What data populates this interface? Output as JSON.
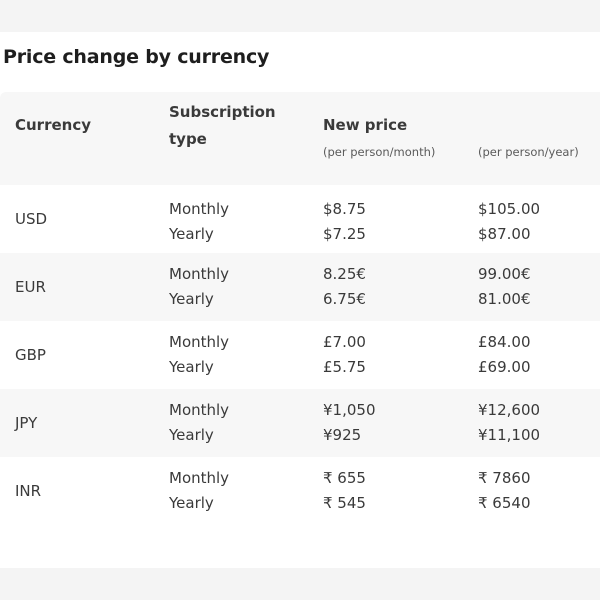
{
  "title": "Price change by currency",
  "headers": {
    "currency": "Currency",
    "subscription_type_line1": "Subscription",
    "subscription_type_line2": "type",
    "new_price": "New price",
    "per_month": "(per person/month)",
    "per_year": "(per person/year)"
  },
  "rows": [
    {
      "currency": "USD",
      "type1": "Monthly",
      "type2": "Yearly",
      "month1": "$8.75",
      "month2": "$7.25",
      "year1": "$105.00",
      "year2": "$87.00"
    },
    {
      "currency": "EUR",
      "type1": "Monthly",
      "type2": "Yearly",
      "month1": "8.25€",
      "month2": "6.75€",
      "year1": "99.00€",
      "year2": "81.00€"
    },
    {
      "currency": "GBP",
      "type1": "Monthly",
      "type2": "Yearly",
      "month1": "£7.00",
      "month2": "£5.75",
      "year1": "£84.00",
      "year2": "£69.00"
    },
    {
      "currency": "JPY",
      "type1": "Monthly",
      "type2": "Yearly",
      "month1": "¥1,050",
      "month2": "¥925",
      "year1": "¥12,600",
      "year2": "¥11,100"
    },
    {
      "currency": "INR",
      "type1": "Monthly",
      "type2": "Yearly",
      "month1": "₹ 655",
      "month2": "₹ 545",
      "year1": "₹ 7860",
      "year2": "₹ 6540"
    }
  ]
}
